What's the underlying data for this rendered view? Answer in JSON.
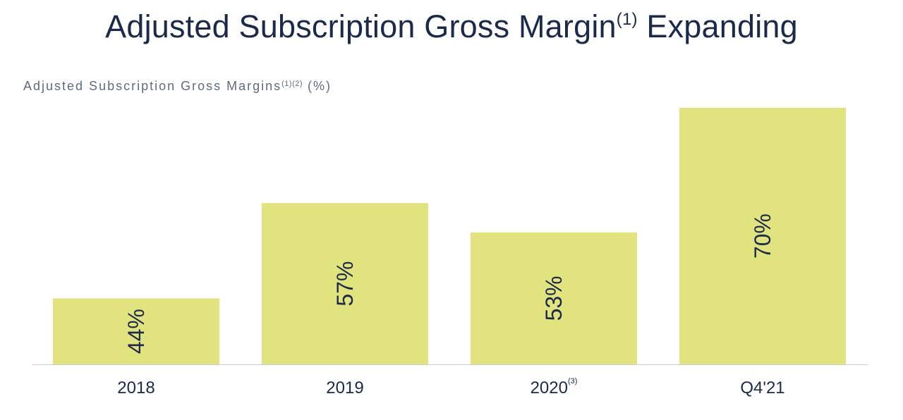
{
  "title": {
    "main": "Adjusted Subscription Gross Margin",
    "superscript": "(1)",
    "suffix": " Expanding"
  },
  "chart_data": {
    "type": "bar",
    "subtitle": {
      "text": "Adjusted Subscription Gross Margins",
      "superscript": "(1)(2)",
      "suffix": " (%)"
    },
    "categories": [
      "2018",
      "2019",
      "2020",
      "Q4'21"
    ],
    "category_footnotes": [
      "",
      "",
      "(3)",
      ""
    ],
    "values": [
      44,
      57,
      53,
      70
    ],
    "value_labels": [
      "44%",
      "57%",
      "53%",
      "70%"
    ],
    "ylim": [
      35,
      74
    ],
    "grid": false,
    "legend": "none",
    "bar_color": "#e1e37f",
    "label_color": "#1b2a4a",
    "baseline_color": "#cccccc"
  }
}
